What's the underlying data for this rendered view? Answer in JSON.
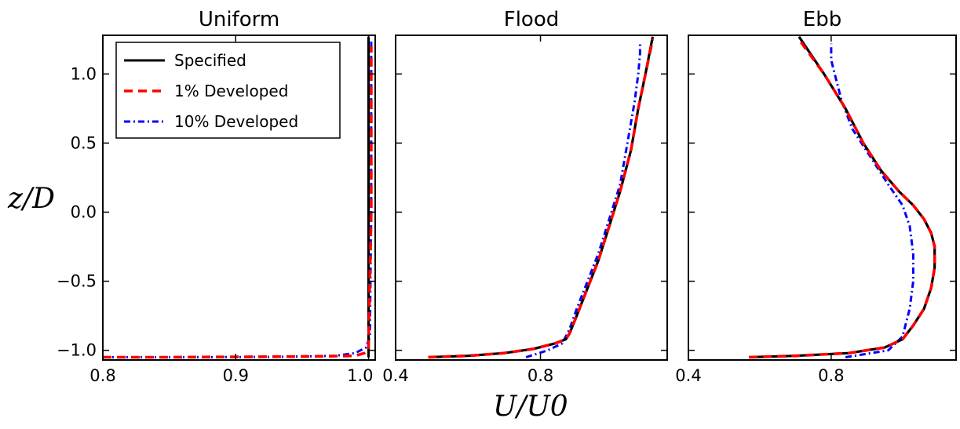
{
  "figure": {
    "ylabel": "z/D",
    "xlabel": "U/U0"
  },
  "legend": {
    "items": [
      {
        "label": "Specified",
        "color": "#000000",
        "style": "solid"
      },
      {
        "label": "1% Developed",
        "color": "#ff0000",
        "style": "dashed"
      },
      {
        "label": "10% Developed",
        "color": "#0000ff",
        "style": "dashdot"
      }
    ]
  },
  "chart_data": [
    {
      "type": "line",
      "title": "Uniform",
      "xlim": [
        0.8,
        1.005
      ],
      "ylim": [
        -1.07,
        1.28
      ],
      "xticks": [
        0.8,
        0.9,
        1.0
      ],
      "xtick_labels": [
        "0.8",
        "0.9",
        "1.0"
      ],
      "yticks": [
        -1.0,
        -0.5,
        0.0,
        0.5,
        1.0
      ],
      "ytick_labels": [
        "−1.0",
        "−0.5",
        "0.0",
        "0.5",
        "1.0"
      ],
      "series": [
        {
          "name": "Specified",
          "x": [
            1.0,
            1.0
          ],
          "y": [
            -1.05,
            1.27
          ]
        },
        {
          "name": "1% Developed",
          "x": [
            0.8,
            0.85,
            0.95,
            0.99,
            0.997,
            1.0,
            1.0,
            1.002,
            1.002
          ],
          "y": [
            -1.05,
            -1.05,
            -1.045,
            -1.04,
            -1.02,
            -1.0,
            -0.95,
            0.0,
            1.2
          ]
        },
        {
          "name": "10% Developed",
          "x": [
            0.8,
            0.85,
            0.93,
            0.975,
            0.99,
            0.998,
            1.001,
            1.002,
            1.002
          ],
          "y": [
            -1.05,
            -1.05,
            -1.048,
            -1.04,
            -1.02,
            -0.98,
            -0.9,
            0.0,
            1.25
          ]
        }
      ]
    },
    {
      "type": "line",
      "title": "Flood",
      "xlim": [
        0.4,
        1.15
      ],
      "ylim": [
        -1.07,
        1.28
      ],
      "xticks": [
        0.4,
        0.8
      ],
      "xtick_labels": [
        "0.4",
        "0.8"
      ],
      "yticks": [
        -1.0,
        -0.5,
        0.0,
        0.5,
        1.0
      ],
      "ytick_labels": [],
      "series": [
        {
          "name": "Specified",
          "x": [
            0.49,
            0.6,
            0.7,
            0.78,
            0.84,
            0.87,
            0.88,
            0.9,
            0.93,
            0.96,
            0.99,
            1.02,
            1.05,
            1.07,
            1.09,
            1.11
          ],
          "y": [
            -1.05,
            -1.04,
            -1.02,
            -0.99,
            -0.95,
            -0.92,
            -0.88,
            -0.75,
            -0.55,
            -0.35,
            -0.1,
            0.15,
            0.45,
            0.75,
            1.0,
            1.27
          ]
        },
        {
          "name": "1% Developed",
          "x": [
            0.49,
            0.6,
            0.7,
            0.78,
            0.84,
            0.87,
            0.88,
            0.9,
            0.93,
            0.96,
            0.99,
            1.02,
            1.05,
            1.07,
            1.09,
            1.11
          ],
          "y": [
            -1.05,
            -1.04,
            -1.02,
            -0.99,
            -0.95,
            -0.92,
            -0.88,
            -0.75,
            -0.55,
            -0.35,
            -0.1,
            0.15,
            0.45,
            0.75,
            1.0,
            1.25
          ]
        },
        {
          "name": "10% Developed",
          "x": [
            0.76,
            0.82,
            0.86,
            0.88,
            0.9,
            0.93,
            0.96,
            0.99,
            1.02,
            1.04,
            1.06,
            1.07,
            1.075,
            1.075
          ],
          "y": [
            -1.05,
            -1.0,
            -0.95,
            -0.85,
            -0.7,
            -0.5,
            -0.3,
            -0.05,
            0.2,
            0.5,
            0.8,
            1.0,
            1.15,
            1.22
          ]
        }
      ]
    },
    {
      "type": "line",
      "title": "Ebb",
      "xlim": [
        0.4,
        1.15
      ],
      "ylim": [
        -1.07,
        1.28
      ],
      "xticks": [
        0.4,
        0.8
      ],
      "xtick_labels": [
        "0.4",
        "0.8"
      ],
      "yticks": [
        -1.0,
        -0.5,
        0.0,
        0.5,
        1.0
      ],
      "ytick_labels": [],
      "series": [
        {
          "name": "Specified",
          "x": [
            0.57,
            0.7,
            0.85,
            0.95,
            1.0,
            1.03,
            1.06,
            1.08,
            1.09,
            1.09,
            1.08,
            1.06,
            1.03,
            0.99,
            0.94,
            0.89,
            0.84,
            0.78,
            0.71
          ],
          "y": [
            -1.05,
            -1.04,
            -1.02,
            -0.98,
            -0.92,
            -0.82,
            -0.7,
            -0.55,
            -0.4,
            -0.25,
            -0.15,
            -0.05,
            0.05,
            0.15,
            0.3,
            0.5,
            0.75,
            1.0,
            1.27
          ]
        },
        {
          "name": "1% Developed",
          "x": [
            0.57,
            0.7,
            0.85,
            0.95,
            1.0,
            1.03,
            1.06,
            1.08,
            1.09,
            1.09,
            1.08,
            1.06,
            1.03,
            0.99,
            0.94,
            0.89,
            0.84,
            0.78,
            0.71
          ],
          "y": [
            -1.05,
            -1.04,
            -1.02,
            -0.98,
            -0.92,
            -0.82,
            -0.7,
            -0.55,
            -0.4,
            -0.25,
            -0.15,
            -0.05,
            0.05,
            0.15,
            0.3,
            0.5,
            0.75,
            1.0,
            1.25
          ]
        },
        {
          "name": "10% Developed",
          "x": [
            0.84,
            0.96,
            1.0,
            1.02,
            1.03,
            1.03,
            1.02,
            1.0,
            0.96,
            0.91,
            0.86,
            0.83,
            0.81,
            0.8,
            0.8
          ],
          "y": [
            -1.05,
            -1.0,
            -0.9,
            -0.7,
            -0.5,
            -0.3,
            -0.1,
            0.05,
            0.2,
            0.4,
            0.6,
            0.8,
            1.0,
            1.1,
            1.22
          ]
        }
      ]
    }
  ]
}
